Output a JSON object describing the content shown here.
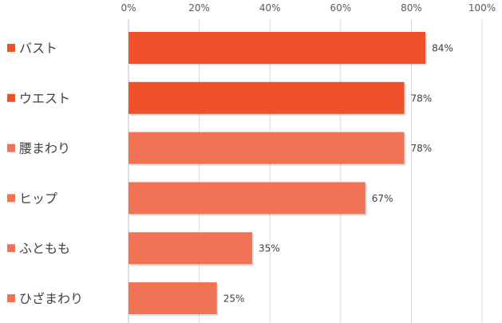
{
  "chart_data": {
    "type": "bar",
    "orientation": "horizontal",
    "categories": [
      "バスト",
      "ウエスト",
      "腰まわり",
      "ヒップ",
      "ふともも",
      "ひざまわり"
    ],
    "values": [
      84,
      78,
      78,
      67,
      35,
      25
    ],
    "value_labels": [
      "84%",
      "78%",
      "78%",
      "67%",
      "35%",
      "25%"
    ],
    "category_colors": [
      "#EF512B",
      "#EF512B",
      "#F27256",
      "#F27256",
      "#F27256",
      "#F27256"
    ],
    "xlim": [
      0,
      100
    ],
    "xticks": [
      0,
      20,
      40,
      60,
      80,
      100
    ],
    "xtick_labels": [
      "0%",
      "20%",
      "40%",
      "60%",
      "80%",
      "100%"
    ],
    "xaxis_position": "top",
    "grid": true,
    "title": "",
    "xlabel": "",
    "ylabel": ""
  }
}
